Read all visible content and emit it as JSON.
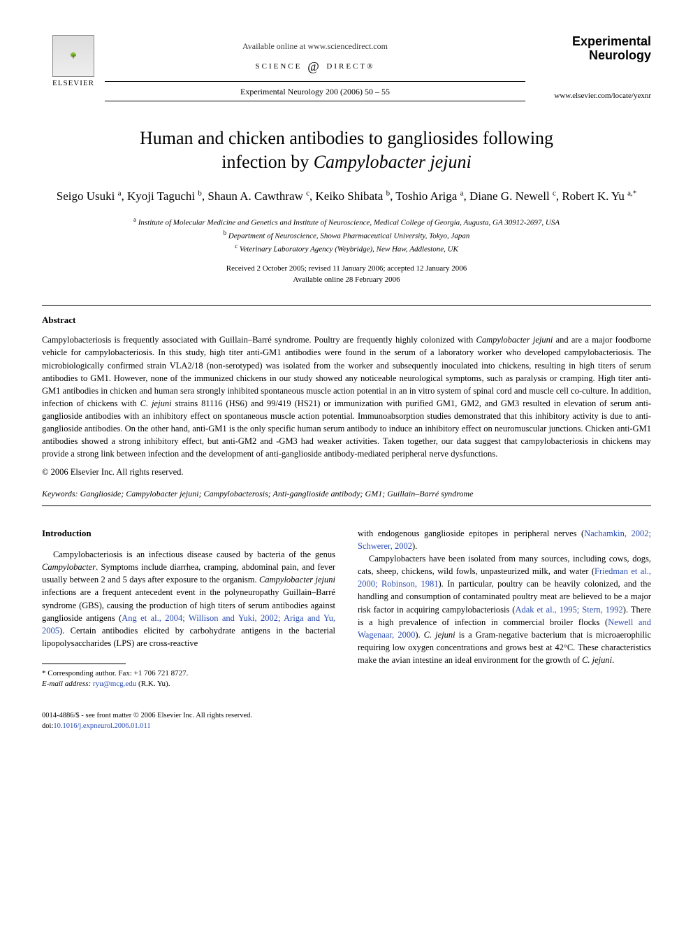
{
  "header": {
    "elsevier_label": "ELSEVIER",
    "available_online": "Available online at www.sciencedirect.com",
    "science_direct": "SCIENCE DIRECT®",
    "journal_ref": "Experimental Neurology 200 (2006) 50 – 55",
    "journal_name_line1": "Experimental",
    "journal_name_line2": "Neurology",
    "journal_url": "www.elsevier.com/locate/yexnr"
  },
  "title_line1": "Human and chicken antibodies to gangliosides following",
  "title_line2_plain": "infection by ",
  "title_line2_italic": "Campylobacter jejuni",
  "authors_html": "Seigo Usuki <sup>a</sup>, Kyoji Taguchi <sup>b</sup>, Shaun A. Cawthraw <sup>c</sup>, Keiko Shibata <sup>b</sup>, Toshio Ariga <sup>a</sup>, Diane G. Newell <sup>c</sup>, Robert K. Yu <sup>a,*</sup>",
  "affiliations": {
    "a": "Institute of Molecular Medicine and Genetics and Institute of Neuroscience, Medical College of Georgia, Augusta, GA 30912-2697, USA",
    "b": "Department of Neuroscience, Showa Pharmaceutical University, Tokyo, Japan",
    "c": "Veterinary Laboratory Agency (Weybridge), New Haw, Addlestone, UK"
  },
  "dates_line1": "Received 2 October 2005; revised 11 January 2006; accepted 12 January 2006",
  "dates_line2": "Available online 28 February 2006",
  "abstract_head": "Abstract",
  "abstract_body": "Campylobacteriosis is frequently associated with Guillain–Barré syndrome. Poultry are frequently highly colonized with <span class=\"italic\">Campylobacter jejuni</span> and are a major foodborne vehicle for campylobacteriosis. In this study, high titer anti-GM1 antibodies were found in the serum of a laboratory worker who developed campylobacteriosis. The microbiologically confirmed strain VLA2/18 (non-serotyped) was isolated from the worker and subsequently inoculated into chickens, resulting in high titers of serum antibodies to GM1. However, none of the immunized chickens in our study showed any noticeable neurological symptoms, such as paralysis or cramping. High titer anti-GM1 antibodies in chicken and human sera strongly inhibited spontaneous muscle action potential in an in vitro system of spinal cord and muscle cell co-culture. In addition, infection of chickens with <span class=\"italic\">C. jejuni</span> strains 81116 (HS6) and 99/419 (HS21) or immunization with purified GM1, GM2, and GM3 resulted in elevation of serum anti-ganglioside antibodies with an inhibitory effect on spontaneous muscle action potential. Immunoabsorption studies demonstrated that this inhibitory activity is due to anti-ganglioside antibodies. On the other hand, anti-GM1 is the only specific human serum antibody to induce an inhibitory effect on neuromuscular junctions. Chicken anti-GM1 antibodies showed a strong inhibitory effect, but anti-GM2 and -GM3 had weaker activities. Taken together, our data suggest that campylobacteriosis in chickens may provide a strong link between infection and the development of anti-ganglioside antibody-mediated peripheral nerve dysfunctions.",
  "copyright": "© 2006 Elsevier Inc. All rights reserved.",
  "keywords_label": "Keywords:",
  "keywords_vals": "Ganglioside; <span class=\"italic\">Campylobacter jejuni</span>; Campylobacterosis; Anti-ganglioside antibody; GM1; Guillain–Barré syndrome",
  "intro_head": "Introduction",
  "intro_para": "Campylobacteriosis is an infectious disease caused by bacteria of the genus <span class=\"italic\">Campylobacter</span>. Symptoms include diarrhea, cramping, abdominal pain, and fever usually between 2 and 5 days after exposure to the organism. <span class=\"italic\">Campylobacter jejuni</span> infections are a frequent antecedent event in the polyneuropathy Guillain–Barré syndrome (GBS), causing the production of high titers of serum antibodies against ganglioside antigens (<span class=\"link\">Ang et al., 2004; Willison and Yuki, 2002; Ariga and Yu, 2005</span>). Certain antibodies elicited by carbohydrate antigens in the bacterial lipopolysaccharides (LPS) are cross-reactive",
  "col2_para1": "with endogenous ganglioside epitopes in peripheral nerves (<span class=\"link\">Nachamkin, 2002; Schwerer, 2002</span>).",
  "col2_para2": "Campylobacters have been isolated from many sources, including cows, dogs, cats, sheep, chickens, wild fowls, unpasteurized milk, and water (<span class=\"link\">Friedman et al., 2000; Robinson, 1981</span>). In particular, poultry can be heavily colonized, and the handling and consumption of contaminated poultry meat are believed to be a major risk factor in acquiring campylobacteriosis (<span class=\"link\">Adak et al., 1995; Stern, 1992</span>). There is a high prevalence of infection in commercial broiler flocks (<span class=\"link\">Newell and Wagenaar, 2000</span>). <span class=\"italic\">C. jejuni</span> is a Gram-negative bacterium that is microaerophilic requiring low oxygen concentrations and grows best at 42°C. These characteristics make the avian intestine an ideal environment for the growth of <span class=\"italic\">C. jejuni</span>.",
  "footnote_corr": "* Corresponding author. Fax: +1 706 721 8727.",
  "footnote_email_label": "E-mail address:",
  "footnote_email": "ryu@mcg.edu",
  "footnote_email_tail": "(R.K. Yu).",
  "bottom_issn": "0014-4886/$ - see front matter © 2006 Elsevier Inc. All rights reserved.",
  "bottom_doi": "doi:10.1016/j.expneurol.2006.01.011"
}
